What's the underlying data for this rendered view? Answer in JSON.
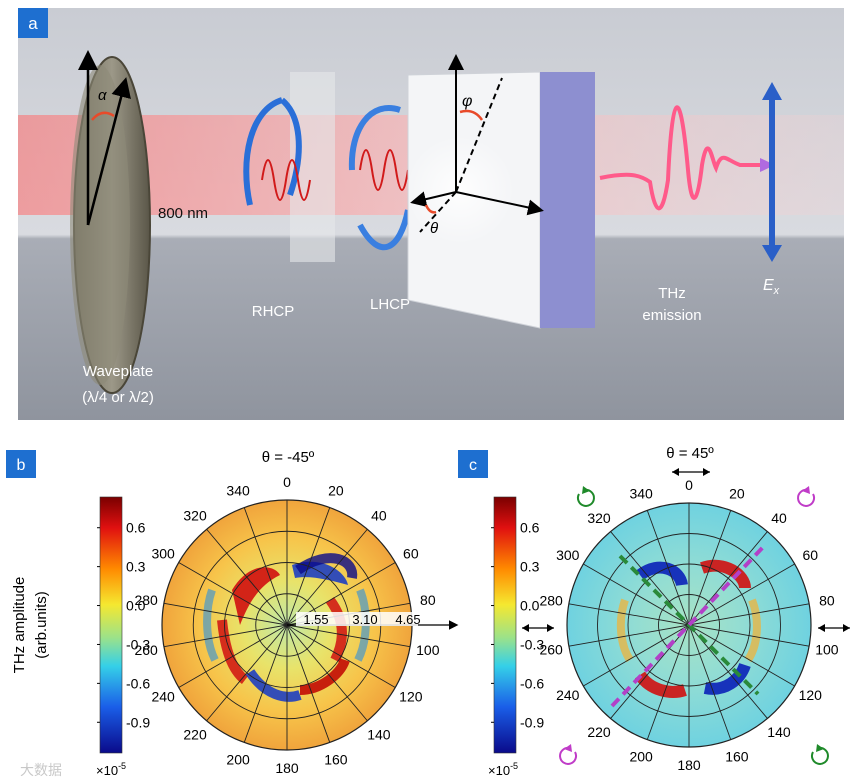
{
  "panel_a": {
    "label": "a",
    "waveplate_label": "Waveplate",
    "waveplate_sub": "(λ/4 or λ/2)",
    "alpha": "α",
    "wavelength": "800 nm",
    "rhcp": "RHCP",
    "lhcp": "LHCP",
    "phi": "φ",
    "theta": "θ",
    "thz_line1": "THz",
    "thz_line2": "emission",
    "ex_main": "E",
    "ex_sub": "x"
  },
  "panel_b": {
    "label": "b",
    "title": "θ = -45º",
    "colorbar_label_1": "THz amplitude",
    "colorbar_label_2": "(arb.units)",
    "colorbar_ticks": [
      "0.6",
      "0.3",
      "0.0",
      "-0.3",
      "-0.6",
      "-0.9"
    ],
    "colorbar_exponent": "×10",
    "colorbar_exponent_power": "-5",
    "radial_ticks": [
      "1.55",
      "3.10",
      "4.65"
    ],
    "angle_ticks": [
      "0",
      "20",
      "40",
      "60",
      "80",
      "100",
      "120",
      "140",
      "160",
      "180",
      "200",
      "220",
      "240",
      "260",
      "280",
      "300",
      "320",
      "340"
    ]
  },
  "panel_c": {
    "label": "c",
    "title": "θ = 45º",
    "colorbar_ticks": [
      "0.6",
      "0.3",
      "0.0",
      "-0.3",
      "-0.6",
      "-0.9"
    ],
    "colorbar_exponent": "×10",
    "colorbar_exponent_power": "-5",
    "angle_ticks": [
      "0",
      "20",
      "40",
      "60",
      "80",
      "100",
      "120",
      "140",
      "160",
      "180",
      "200",
      "220",
      "240",
      "260",
      "280",
      "300",
      "320",
      "340"
    ],
    "colors": {
      "green_rotation": "#1f8a2a",
      "magenta_rotation": "#c03cc8"
    }
  },
  "watermark": "大数据"
}
